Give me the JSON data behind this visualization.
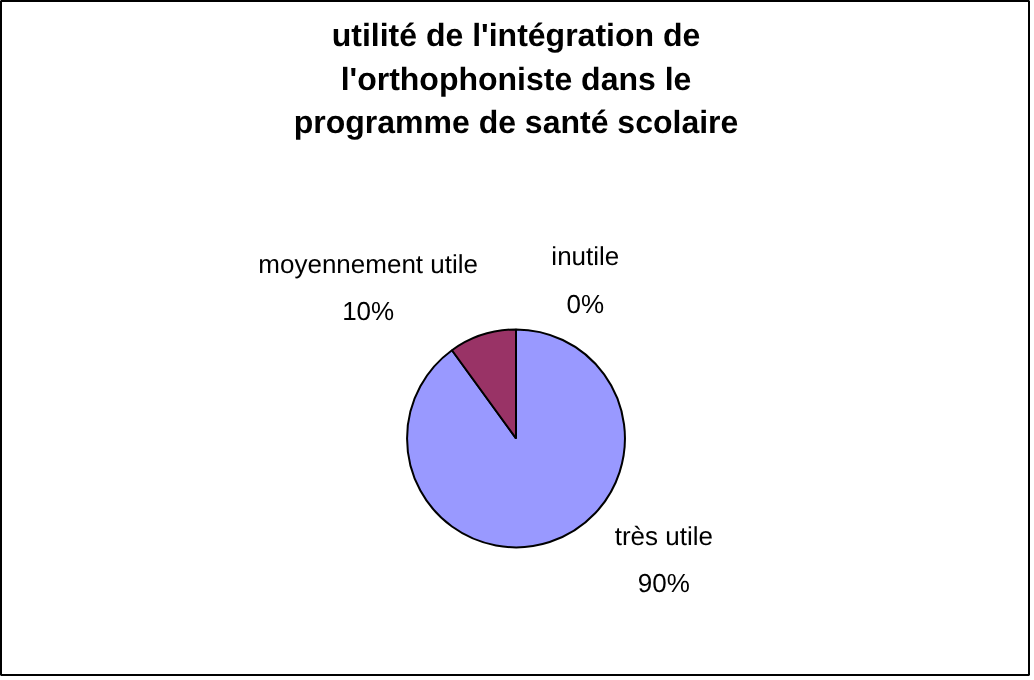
{
  "chart_data": {
    "type": "pie",
    "title": "utilité de l'intégration de l'orthophoniste dans le programme de santé scolaire",
    "categories": [
      "très utile",
      "moyennement utile",
      "inutile"
    ],
    "values": [
      90,
      10,
      0
    ],
    "colors": [
      "#9999ff",
      "#993366",
      "#ffffcc"
    ],
    "value_labels": [
      "90%",
      "10%",
      "0%"
    ]
  }
}
